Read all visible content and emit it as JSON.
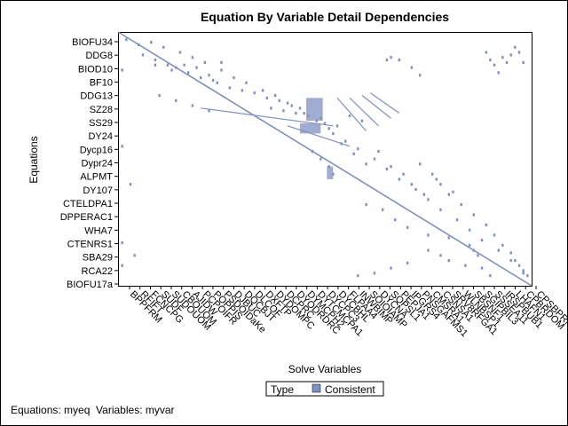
{
  "chart_data": {
    "type": "scatter",
    "title": "Equation By Variable Detail Dependencies",
    "xlabel": "Solve Variables",
    "ylabel": "Equations",
    "y_tick_labels": [
      "BIOFU34",
      "DDG8",
      "BIOD10",
      "BF10",
      "DDG13",
      "SZ28",
      "SS29",
      "DY24",
      "Dycp16",
      "Dypr24",
      "ALPMT",
      "DY107",
      "CTELDPA1",
      "DPPERAC1",
      "WHA7",
      "CTENRS1",
      "SBA29",
      "RCA22",
      "BIOFU17a"
    ],
    "x_tick_labels": [
      "BPPFRM",
      "RFIFT",
      "FCNCPG",
      "SUDF",
      "SUDOUOM",
      "CBOUOM",
      "AJIDW",
      "PCPOIFR",
      "POPPIS",
      "PSDOIDaKe",
      "DJBUC",
      "DQCBJT",
      "DLCOF",
      "DXFTP",
      "DYDOMPC",
      "DCPRC",
      "DYODRDRC",
      "DYMCPH2",
      "DYTCMCPA1",
      "DYCPC3",
      "DYCBHL",
      "FLPAA4",
      "INWBIMP",
      "SOIOIAMP",
      "DYCNA",
      "SQPSL1",
      "PEPJA1",
      "IPGRS4",
      "PNSGAFMS1",
      "CMSRA1",
      "CSNSA1",
      "SRV8RFGA1",
      "WLNBSP1",
      "SBSNF1",
      "SGIPBIL3",
      "SSSEA11",
      "IRSPBUB1",
      "LHAFN1",
      "CPBRDOM",
      "CPSBPRM1"
    ],
    "legend": {
      "title": "Type",
      "entries": [
        "Consistent"
      ]
    },
    "footnote": "Equations: myeq  Variables: myvar",
    "series": [
      {
        "name": "Consistent",
        "color": "#8090c0",
        "diagonal": {
          "from": [
            0,
            0
          ],
          "to": [
            1,
            1
          ]
        },
        "points": [
          [
            0.02,
            0.03
          ],
          [
            0.05,
            0.05
          ],
          [
            0.08,
            0.04
          ],
          [
            0.11,
            0.06
          ],
          [
            0.15,
            0.08
          ],
          [
            0.18,
            0.1
          ],
          [
            0.21,
            0.12
          ],
          [
            0.25,
            0.15
          ],
          [
            0.28,
            0.18
          ],
          [
            0.31,
            0.2
          ],
          [
            0.35,
            0.23
          ],
          [
            0.38,
            0.25
          ],
          [
            0.41,
            0.28
          ],
          [
            0.45,
            0.32
          ],
          [
            0.48,
            0.35
          ],
          [
            0.52,
            0.4
          ],
          [
            0.55,
            0.43
          ],
          [
            0.58,
            0.46
          ],
          [
            0.62,
            0.5
          ],
          [
            0.65,
            0.54
          ],
          [
            0.68,
            0.58
          ],
          [
            0.72,
            0.62
          ],
          [
            0.75,
            0.66
          ],
          [
            0.78,
            0.7
          ],
          [
            0.82,
            0.74
          ],
          [
            0.85,
            0.78
          ],
          [
            0.88,
            0.82
          ],
          [
            0.92,
            0.86
          ],
          [
            0.95,
            0.9
          ],
          [
            0.98,
            0.95
          ],
          [
            0.01,
            0.15
          ],
          [
            0.01,
            0.45
          ],
          [
            0.01,
            0.83
          ],
          [
            0.01,
            0.92
          ],
          [
            0.03,
            0.6
          ],
          [
            0.04,
            0.88
          ],
          [
            0.06,
            0.09
          ],
          [
            0.09,
            0.11
          ],
          [
            0.12,
            0.13
          ],
          [
            0.14,
            0.14
          ],
          [
            0.17,
            0.16
          ],
          [
            0.2,
            0.18
          ],
          [
            0.24,
            0.2
          ],
          [
            0.27,
            0.22
          ],
          [
            0.3,
            0.23
          ],
          [
            0.33,
            0.24
          ],
          [
            0.36,
            0.26
          ],
          [
            0.39,
            0.27
          ],
          [
            0.42,
            0.29
          ],
          [
            0.44,
            0.3
          ],
          [
            0.09,
            0.13
          ],
          [
            0.13,
            0.15
          ],
          [
            0.16,
            0.13
          ],
          [
            0.19,
            0.14
          ],
          [
            0.22,
            0.17
          ],
          [
            0.23,
            0.19
          ],
          [
            0.25,
            0.12
          ],
          [
            0.37,
            0.3
          ],
          [
            0.4,
            0.31
          ],
          [
            0.43,
            0.32
          ],
          [
            0.46,
            0.33
          ],
          [
            0.49,
            0.34
          ],
          [
            0.5,
            0.36
          ],
          [
            0.51,
            0.38
          ],
          [
            0.53,
            0.37
          ],
          [
            0.56,
            0.33
          ],
          [
            0.59,
            0.35
          ],
          [
            0.54,
            0.44
          ],
          [
            0.57,
            0.48
          ],
          [
            0.6,
            0.52
          ],
          [
            0.63,
            0.47
          ],
          [
            0.66,
            0.53
          ],
          [
            0.69,
            0.56
          ],
          [
            0.71,
            0.6
          ],
          [
            0.74,
            0.64
          ],
          [
            0.65,
            0.11
          ],
          [
            0.66,
            0.1
          ],
          [
            0.68,
            0.11
          ],
          [
            0.71,
            0.14
          ],
          [
            0.73,
            0.17
          ],
          [
            0.89,
            0.08
          ],
          [
            0.9,
            0.11
          ],
          [
            0.91,
            0.13
          ],
          [
            0.92,
            0.16
          ],
          [
            0.93,
            0.1
          ],
          [
            0.94,
            0.12
          ],
          [
            0.95,
            0.09
          ],
          [
            0.96,
            0.06
          ],
          [
            0.97,
            0.08
          ],
          [
            0.98,
            0.12
          ],
          [
            0.78,
            0.6
          ],
          [
            0.8,
            0.64
          ],
          [
            0.83,
            0.68
          ],
          [
            0.86,
            0.72
          ],
          [
            0.89,
            0.76
          ],
          [
            0.91,
            0.8
          ],
          [
            0.93,
            0.84
          ],
          [
            0.95,
            0.87
          ],
          [
            0.96,
            0.9
          ],
          [
            0.97,
            0.92
          ],
          [
            0.98,
            0.94
          ],
          [
            0.99,
            0.96
          ],
          [
            0.8,
            0.9
          ],
          [
            0.84,
            0.92
          ],
          [
            0.88,
            0.93
          ],
          [
            0.9,
            0.96
          ],
          [
            0.75,
            0.86
          ],
          [
            0.78,
            0.88
          ],
          [
            0.7,
            0.91
          ],
          [
            0.66,
            0.93
          ],
          [
            0.62,
            0.95
          ],
          [
            0.58,
            0.96
          ],
          [
            0.85,
            0.84
          ],
          [
            0.86,
            0.86
          ],
          [
            0.87,
            0.88
          ],
          [
            0.75,
            0.8
          ],
          [
            0.8,
            0.81
          ],
          [
            0.1,
            0.25
          ],
          [
            0.14,
            0.27
          ],
          [
            0.18,
            0.29
          ],
          [
            0.22,
            0.31
          ],
          [
            0.73,
            0.52
          ],
          [
            0.76,
            0.56
          ],
          [
            0.77,
            0.58
          ],
          [
            0.81,
            0.63
          ],
          [
            0.6,
            0.68
          ],
          [
            0.64,
            0.7
          ],
          [
            0.67,
            0.74
          ],
          [
            0.7,
            0.77
          ],
          [
            0.47,
            0.47
          ],
          [
            0.49,
            0.5
          ],
          [
            0.51,
            0.53
          ],
          [
            0.52,
            0.56
          ]
        ],
        "blocks": [
          {
            "x": [
              0.455,
              0.495
            ],
            "y": [
              0.26,
              0.35
            ]
          },
          {
            "x": [
              0.44,
              0.49
            ],
            "y": [
              0.36,
              0.4
            ]
          },
          {
            "x": [
              0.505,
              0.52
            ],
            "y": [
              0.53,
              0.58
            ]
          }
        ],
        "streaks": [
          {
            "from": [
              0.53,
              0.26
            ],
            "to": [
              0.6,
              0.39
            ]
          },
          {
            "from": [
              0.56,
              0.26
            ],
            "to": [
              0.63,
              0.37
            ]
          },
          {
            "from": [
              0.59,
              0.25
            ],
            "to": [
              0.66,
              0.34
            ]
          },
          {
            "from": [
              0.61,
              0.24
            ],
            "to": [
              0.68,
              0.32
            ]
          },
          {
            "from": [
              0.2,
              0.3
            ],
            "to": [
              0.52,
              0.37
            ]
          },
          {
            "from": [
              0.41,
              0.37
            ],
            "to": [
              0.56,
              0.45
            ]
          }
        ]
      }
    ]
  }
}
